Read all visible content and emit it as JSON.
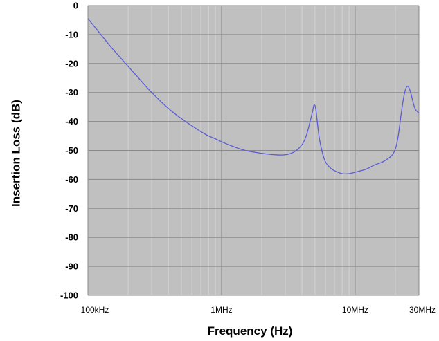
{
  "chart_data": {
    "type": "line",
    "title": "",
    "xlabel": "Frequency (Hz)",
    "ylabel": "Insertion Loss (dB)",
    "x_scale": "log",
    "xlim": [
      100000,
      30000000
    ],
    "ylim": [
      -100,
      0
    ],
    "grid": true,
    "legend": "none",
    "y_ticks": [
      0,
      -10,
      -20,
      -30,
      -40,
      -50,
      -60,
      -70,
      -80,
      -90,
      -100
    ],
    "y_tick_labels": [
      "0",
      "-10",
      "-20",
      "-30",
      "-40",
      "-50",
      "-60",
      "-70",
      "-80",
      "-90",
      "-100"
    ],
    "x_ticks": [
      100000,
      1000000,
      10000000,
      30000000
    ],
    "x_tick_labels": [
      "100kHz",
      "1MHz",
      "10MHz",
      "30MHz"
    ],
    "x_minor_gridlines": [
      200000,
      300000,
      400000,
      500000,
      600000,
      700000,
      800000,
      900000,
      2000000,
      3000000,
      4000000,
      5000000,
      6000000,
      7000000,
      8000000,
      9000000,
      20000000
    ],
    "colors": {
      "plot_background": "#c0c0c0",
      "major_grid": "#8a8a8a",
      "minor_grid": "#d4d4d4",
      "line": "#5b5bd6"
    },
    "series": [
      {
        "x": [
          100000,
          120000,
          150000,
          200000,
          250000,
          300000,
          400000,
          500000,
          600000,
          700000,
          800000,
          900000,
          1000000,
          1200000,
          1500000,
          2000000,
          2500000,
          3000000,
          3500000,
          4000000,
          4300000,
          4600000,
          4800000,
          4900000,
          5000000,
          5100000,
          5200000,
          5400000,
          5700000,
          6000000,
          6500000,
          7000000,
          8000000,
          9000000,
          10000000,
          12000000,
          14000000,
          16000000,
          18000000,
          19000000,
          20000000,
          21000000,
          22000000,
          23000000,
          24000000,
          25000000,
          26000000,
          27000000,
          28000000,
          29000000,
          30000000
        ],
        "y": [
          -4.5,
          -9,
          -14.5,
          -21,
          -26,
          -30,
          -35.5,
          -39,
          -41.5,
          -43.5,
          -45,
          -46,
          -47,
          -48.5,
          -50,
          -51,
          -51.5,
          -51.5,
          -50.5,
          -48,
          -45,
          -40,
          -36.5,
          -34.5,
          -34.5,
          -36.5,
          -40,
          -46,
          -51,
          -54,
          -56,
          -57,
          -58,
          -58,
          -57.5,
          -56.5,
          -55,
          -54,
          -52.5,
          -51.5,
          -49.5,
          -45,
          -38,
          -32,
          -28.5,
          -28,
          -30,
          -33,
          -35.5,
          -36.5,
          -37
        ]
      }
    ]
  }
}
